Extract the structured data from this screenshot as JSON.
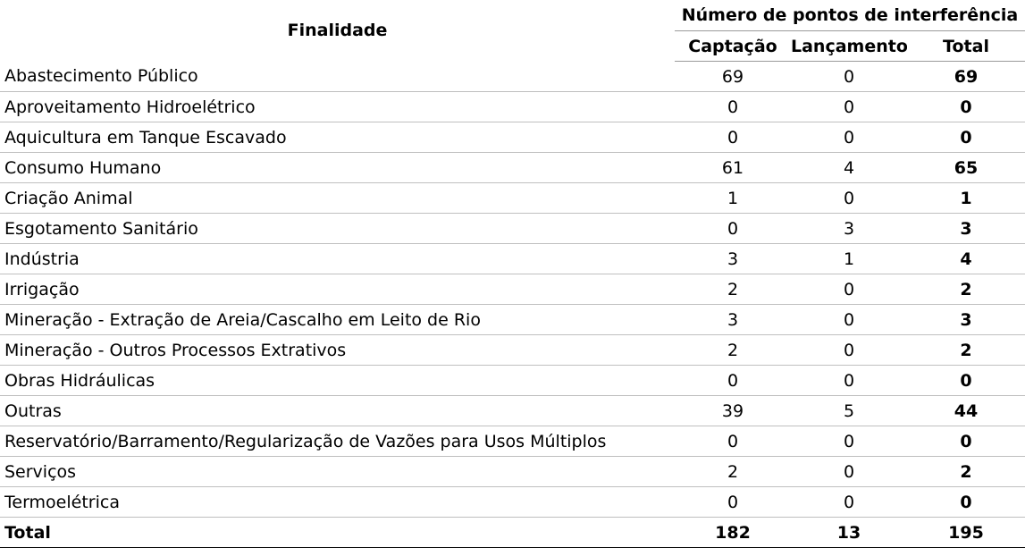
{
  "header": {
    "finalidade": "Finalidade",
    "group": "Número de pontos de interferência",
    "captacao": "Captação",
    "lancamento": "Lançamento",
    "total": "Total"
  },
  "rows": [
    {
      "finalidade": "Abastecimento Público",
      "captacao": "69",
      "lancamento": "0",
      "total": "69"
    },
    {
      "finalidade": "Aproveitamento Hidroelétrico",
      "captacao": "0",
      "lancamento": "0",
      "total": "0"
    },
    {
      "finalidade": "Aquicultura em Tanque Escavado",
      "captacao": "0",
      "lancamento": "0",
      "total": "0"
    },
    {
      "finalidade": "Consumo Humano",
      "captacao": "61",
      "lancamento": "4",
      "total": "65"
    },
    {
      "finalidade": "Criação Animal",
      "captacao": "1",
      "lancamento": "0",
      "total": "1"
    },
    {
      "finalidade": "Esgotamento Sanitário",
      "captacao": "0",
      "lancamento": "3",
      "total": "3"
    },
    {
      "finalidade": "Indústria",
      "captacao": "3",
      "lancamento": "1",
      "total": "4"
    },
    {
      "finalidade": "Irrigação",
      "captacao": "2",
      "lancamento": "0",
      "total": "2"
    },
    {
      "finalidade": "Mineração - Extração de Areia/Cascalho em Leito de Rio",
      "captacao": "3",
      "lancamento": "0",
      "total": "3"
    },
    {
      "finalidade": "Mineração - Outros Processos Extrativos",
      "captacao": "2",
      "lancamento": "0",
      "total": "2"
    },
    {
      "finalidade": "Obras Hidráulicas",
      "captacao": "0",
      "lancamento": "0",
      "total": "0"
    },
    {
      "finalidade": "Outras",
      "captacao": "39",
      "lancamento": "5",
      "total": "44"
    },
    {
      "finalidade": "Reservatório/Barramento/Regularização de Vazões para Usos Múltiplos",
      "captacao": "0",
      "lancamento": "0",
      "total": "0"
    },
    {
      "finalidade": "Serviços",
      "captacao": "2",
      "lancamento": "0",
      "total": "2"
    },
    {
      "finalidade": "Termoelétrica",
      "captacao": "0",
      "lancamento": "0",
      "total": "0"
    }
  ],
  "totals": {
    "label": "Total",
    "captacao": "182",
    "lancamento": "13",
    "total": "195"
  }
}
